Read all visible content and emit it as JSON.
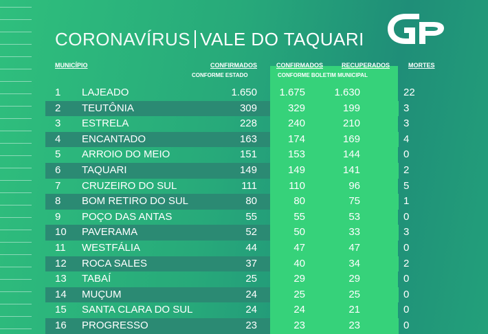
{
  "title": {
    "part1": "CORONAVÍRUS",
    "part2": "VALE DO TAQUARI"
  },
  "headers": {
    "municipio": "MUNICÍPIO",
    "confirmados_estado": "CONFIRMADOS",
    "confirmados_estado_sub": "CONFORME ESTADO",
    "confirmados_boletim": "CONFIRMADOS",
    "recuperados": "RECUPERADOS",
    "boletim_sub": "CONFORME BOLETIM MUNICIPAL",
    "mortes": "MORTES"
  },
  "logo": {
    "text": "GP"
  },
  "rows": [
    {
      "n": "1",
      "municipio": "LAJEADO",
      "conf_estado": "1.650",
      "conf_boletim": "1.675",
      "recuperados": "1.630",
      "mortes": "22"
    },
    {
      "n": "2",
      "municipio": "TEUTÔNIA",
      "conf_estado": "309",
      "conf_boletim": "329",
      "recuperados": "199",
      "mortes": "3"
    },
    {
      "n": "3",
      "municipio": "ESTRELA",
      "conf_estado": "228",
      "conf_boletim": "240",
      "recuperados": "210",
      "mortes": "3"
    },
    {
      "n": "4",
      "municipio": "ENCANTADO",
      "conf_estado": "163",
      "conf_boletim": "174",
      "recuperados": "169",
      "mortes": "4"
    },
    {
      "n": "5",
      "municipio": "ARROIO DO MEIO",
      "conf_estado": "151",
      "conf_boletim": "153",
      "recuperados": "144",
      "mortes": "0"
    },
    {
      "n": "6",
      "municipio": "TAQUARI",
      "conf_estado": "149",
      "conf_boletim": "149",
      "recuperados": "141",
      "mortes": "2"
    },
    {
      "n": "7",
      "municipio": "CRUZEIRO DO SUL",
      "conf_estado": "111",
      "conf_boletim": "110",
      "recuperados": "96",
      "mortes": "5"
    },
    {
      "n": "8",
      "municipio": "BOM RETIRO DO SUL",
      "conf_estado": "80",
      "conf_boletim": "80",
      "recuperados": "75",
      "mortes": "1"
    },
    {
      "n": "9",
      "municipio": "POÇO DAS ANTAS",
      "conf_estado": "55",
      "conf_boletim": "55",
      "recuperados": "53",
      "mortes": "0"
    },
    {
      "n": "10",
      "municipio": "PAVERAMA",
      "conf_estado": "52",
      "conf_boletim": "50",
      "recuperados": "33",
      "mortes": "3"
    },
    {
      "n": "11",
      "municipio": "WESTFÁLIA",
      "conf_estado": "44",
      "conf_boletim": "47",
      "recuperados": "47",
      "mortes": "0"
    },
    {
      "n": "12",
      "municipio": "ROCA SALES",
      "conf_estado": "37",
      "conf_boletim": "40",
      "recuperados": "34",
      "mortes": "2"
    },
    {
      "n": "13",
      "municipio": "TABAÍ",
      "conf_estado": "25",
      "conf_boletim": "29",
      "recuperados": "29",
      "mortes": "0"
    },
    {
      "n": "14",
      "municipio": "MUÇUM",
      "conf_estado": "24",
      "conf_boletim": "25",
      "recuperados": "25",
      "mortes": "0"
    },
    {
      "n": "15",
      "municipio": "SANTA CLARA DO SUL",
      "conf_estado": "24",
      "conf_boletim": "24",
      "recuperados": "21",
      "mortes": "0"
    },
    {
      "n": "16",
      "municipio": "PROGRESSO",
      "conf_estado": "23",
      "conf_boletim": "23",
      "recuperados": "23",
      "mortes": "0"
    }
  ]
}
